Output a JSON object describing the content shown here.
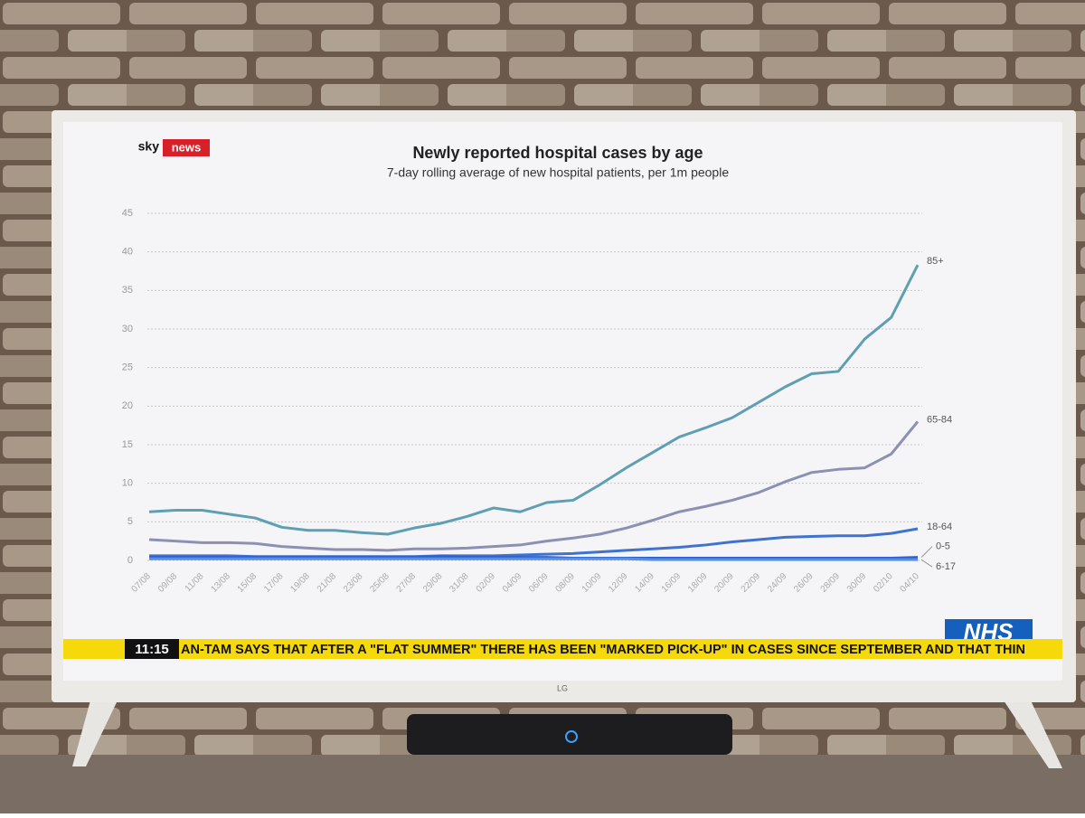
{
  "brand": {
    "part1": "sky",
    "part2": "news"
  },
  "ticker": {
    "time": "11:15",
    "text": "AN-TAM SAYS THAT AFTER A \"FLAT SUMMER\" THERE HAS BEEN \"MARKED PICK-UP\" IN CASES SINCE SEPTEMBER AND THAT THIN"
  },
  "nhs": "NHS",
  "tv_brand": "LG",
  "chart_data": {
    "type": "line",
    "title": "Newly reported hospital cases by age",
    "subtitle": "7-day rolling average of new hospital patients, per 1m people",
    "categories": [
      "07/08",
      "09/08",
      "11/08",
      "13/08",
      "15/08",
      "17/08",
      "19/08",
      "21/08",
      "23/08",
      "25/08",
      "27/08",
      "29/08",
      "31/08",
      "02/09",
      "04/09",
      "06/09",
      "08/09",
      "10/09",
      "12/09",
      "14/09",
      "16/09",
      "18/09",
      "20/09",
      "22/09",
      "24/09",
      "26/09",
      "28/09",
      "30/09",
      "02/10",
      "04/10"
    ],
    "series": [
      {
        "name": "85+",
        "color": "#5f9fb3",
        "values": [
          6.3,
          6.5,
          6.5,
          6,
          5.5,
          4.3,
          3.9,
          3.9,
          3.6,
          3.4,
          4.2,
          4.8,
          5.7,
          6.8,
          6.3,
          7.5,
          7.8,
          9.8,
          12,
          14,
          16,
          17.2,
          18.5,
          20.5,
          22.5,
          24.2,
          24.5,
          28.7,
          31.5,
          38.3
        ]
      },
      {
        "name": "65-84",
        "color": "#8c90b2",
        "values": [
          2.7,
          2.5,
          2.3,
          2.3,
          2.2,
          1.8,
          1.6,
          1.4,
          1.4,
          1.3,
          1.5,
          1.5,
          1.6,
          1.8,
          2.0,
          2.5,
          2.9,
          3.4,
          4.2,
          5.2,
          6.3,
          7.0,
          7.8,
          8.8,
          10.2,
          11.4,
          11.8,
          12.0,
          13.8,
          18.0
        ]
      },
      {
        "name": "18-64",
        "color": "#3f73cf",
        "values": [
          0.6,
          0.6,
          0.6,
          0.6,
          0.5,
          0.5,
          0.5,
          0.5,
          0.5,
          0.5,
          0.5,
          0.6,
          0.6,
          0.6,
          0.7,
          0.8,
          0.9,
          1.1,
          1.3,
          1.5,
          1.7,
          2.0,
          2.4,
          2.7,
          3.0,
          3.1,
          3.2,
          3.2,
          3.5,
          4.1
        ]
      },
      {
        "name": "0-5",
        "color": "#2b5fd6",
        "values": [
          0.4,
          0.4,
          0.4,
          0.4,
          0.4,
          0.4,
          0.4,
          0.4,
          0.4,
          0.4,
          0.4,
          0.5,
          0.4,
          0.4,
          0.4,
          0.4,
          0.3,
          0.3,
          0.3,
          0.3,
          0.3,
          0.3,
          0.3,
          0.3,
          0.3,
          0.3,
          0.3,
          0.3,
          0.3,
          0.4
        ]
      },
      {
        "name": "6-17",
        "color": "#5a8fdc",
        "values": [
          0.2,
          0.2,
          0.2,
          0.2,
          0.2,
          0.2,
          0.2,
          0.2,
          0.2,
          0.2,
          0.2,
          0.2,
          0.2,
          0.2,
          0.2,
          0.2,
          0.2,
          0.2,
          0.2,
          0.1,
          0.1,
          0.1,
          0.1,
          0.1,
          0.1,
          0.1,
          0.1,
          0.1,
          0.1,
          0.1
        ]
      }
    ],
    "ylim": [
      0,
      45
    ],
    "yticks": [
      0,
      5,
      10,
      15,
      20,
      25,
      30,
      35,
      40,
      45
    ],
    "grid": true
  }
}
